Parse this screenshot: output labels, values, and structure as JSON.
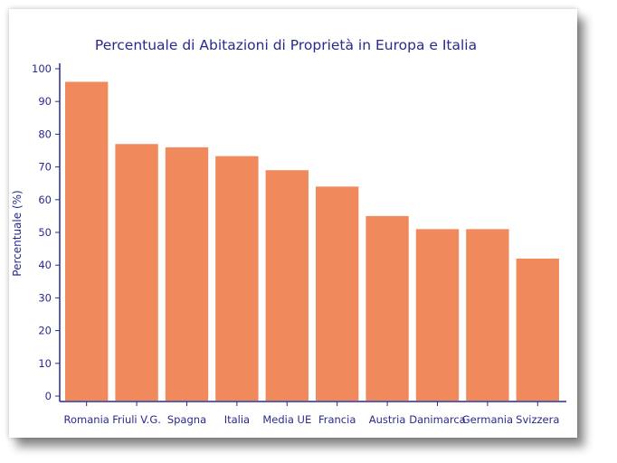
{
  "chart_data": {
    "type": "bar",
    "title": "Percentuale di Abitazioni di Proprietà in Europa e Italia",
    "xlabel": "",
    "ylabel": "Percentuale (%)",
    "categories": [
      "Romania",
      "Friuli V.G.",
      "Spagna",
      "Italia",
      "Media UE",
      "Francia",
      "Austria",
      "Danimarca",
      "Germania",
      "Svizzera"
    ],
    "values": [
      96,
      77,
      76,
      73.3,
      69,
      64,
      55,
      51,
      51,
      42
    ],
    "ylim": [
      0,
      100
    ],
    "yticks": [
      0,
      10,
      20,
      30,
      40,
      50,
      60,
      70,
      80,
      90,
      100
    ],
    "bar_color": "#f08a5d",
    "axis_color": "#2a2a8c",
    "grid": false,
    "legend": "none"
  }
}
